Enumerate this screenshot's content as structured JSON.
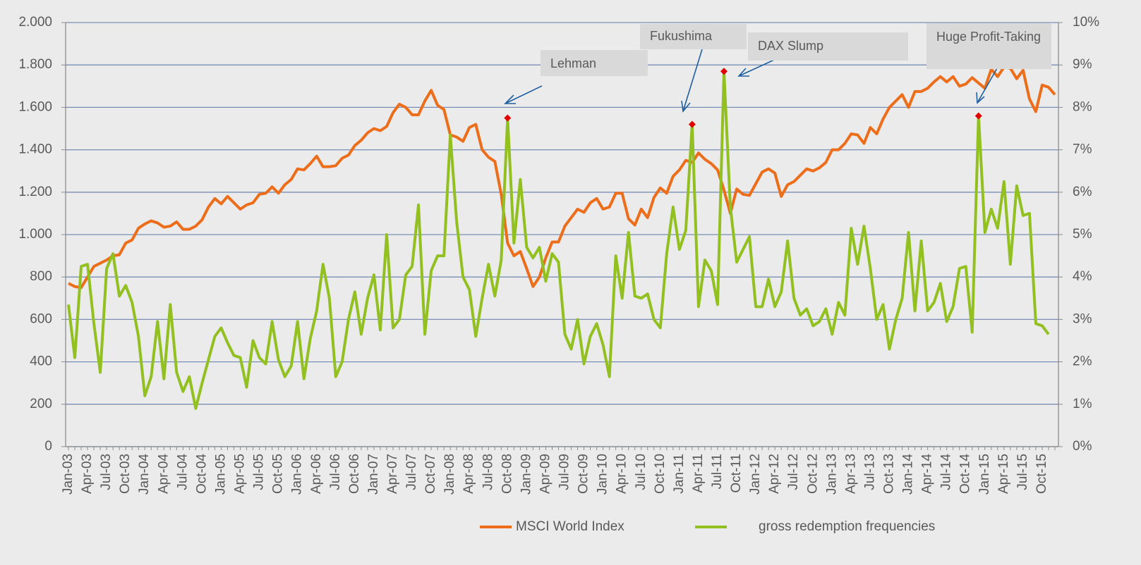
{
  "chart_data": {
    "type": "line",
    "categories": [
      "Jan-03",
      null,
      null,
      "Apr-03",
      null,
      null,
      "Jul-03",
      null,
      null,
      "Oct-03",
      null,
      null,
      "Jan-04",
      null,
      null,
      "Apr-04",
      null,
      null,
      "Jul-04",
      null,
      null,
      "Oct-04",
      null,
      null,
      "Jan-05",
      null,
      null,
      "Apr-05",
      null,
      null,
      "Jul-05",
      null,
      null,
      "Oct-05",
      null,
      null,
      "Jan-06",
      null,
      null,
      "Apr-06",
      null,
      null,
      "Jul-06",
      null,
      null,
      "Oct-06",
      null,
      null,
      "Jan-07",
      null,
      null,
      "Apr-07",
      null,
      null,
      "Jul-07",
      null,
      null,
      "Oct-07",
      null,
      null,
      "Jan-08",
      null,
      null,
      "Apr-08",
      null,
      null,
      "Jul-08",
      null,
      null,
      "Oct-08",
      null,
      null,
      "Jan-09",
      null,
      null,
      "Apr-09",
      null,
      null,
      "Jul-09",
      null,
      null,
      "Oct-09",
      null,
      null,
      "Jan-10",
      null,
      null,
      "Apr-10",
      null,
      null,
      "Jul-10",
      null,
      null,
      "Oct-10",
      null,
      null,
      "Jan-11",
      null,
      null,
      "Apr-11",
      null,
      null,
      "Jul-11",
      null,
      null,
      "Oct-11",
      null,
      null,
      "Jan-12",
      null,
      null,
      "Apr-12",
      null,
      null,
      "Jul-12",
      null,
      null,
      "Oct-12",
      null,
      null,
      "Jan-13",
      null,
      null,
      "Apr-13",
      null,
      null,
      "Jul-13",
      null,
      null,
      "Oct-13",
      null,
      null,
      "Jan-14",
      null,
      null,
      "Apr-14",
      null,
      null,
      "Jul-14",
      null,
      null,
      "Oct-14",
      null,
      null,
      "Jan-15",
      null,
      null,
      "Apr-15",
      null,
      null,
      "Jul-15",
      null,
      null,
      "Oct-15",
      null,
      null
    ],
    "series": [
      {
        "name": "MSCI World Index",
        "color": "#ec6d1a",
        "axis": "y",
        "values": [
          770,
          755,
          750,
          800,
          850,
          865,
          880,
          900,
          905,
          960,
          975,
          1030,
          1050,
          1065,
          1055,
          1035,
          1040,
          1060,
          1025,
          1025,
          1040,
          1070,
          1130,
          1170,
          1145,
          1180,
          1150,
          1120,
          1140,
          1150,
          1190,
          1195,
          1225,
          1195,
          1235,
          1260,
          1310,
          1305,
          1335,
          1370,
          1320,
          1320,
          1325,
          1360,
          1375,
          1420,
          1445,
          1480,
          1500,
          1490,
          1510,
          1575,
          1615,
          1600,
          1565,
          1565,
          1630,
          1680,
          1610,
          1590,
          1470,
          1460,
          1440,
          1505,
          1520,
          1400,
          1365,
          1345,
          1190,
          960,
          900,
          920,
          840,
          755,
          800,
          890,
          965,
          965,
          1040,
          1080,
          1120,
          1105,
          1150,
          1170,
          1120,
          1130,
          1195,
          1195,
          1075,
          1045,
          1120,
          1080,
          1175,
          1220,
          1195,
          1275,
          1305,
          1350,
          1340,
          1385,
          1355,
          1335,
          1305,
          1210,
          1100,
          1215,
          1190,
          1185,
          1240,
          1295,
          1310,
          1290,
          1180,
          1235,
          1250,
          1280,
          1310,
          1300,
          1315,
          1340,
          1400,
          1400,
          1430,
          1475,
          1470,
          1430,
          1505,
          1475,
          1545,
          1600,
          1630,
          1660,
          1600,
          1675,
          1675,
          1690,
          1720,
          1745,
          1720,
          1745,
          1700,
          1710,
          1740,
          1715,
          1690,
          1780,
          1745,
          1790,
          1785,
          1735,
          1775,
          1640,
          1580,
          1705,
          1695,
          1660
        ]
      },
      {
        "name": "gross redemption frequencies",
        "color": "#92c020",
        "axis": "y2",
        "values": [
          3.35,
          2.1,
          4.25,
          4.3,
          2.9,
          1.75,
          4.2,
          4.55,
          3.55,
          3.8,
          3.4,
          2.6,
          1.2,
          1.65,
          2.95,
          1.6,
          3.35,
          1.75,
          1.3,
          1.65,
          0.9,
          1.5,
          2.05,
          2.6,
          2.8,
          2.45,
          2.15,
          2.1,
          1.4,
          2.5,
          2.1,
          1.95,
          2.95,
          2.05,
          1.65,
          1.9,
          2.95,
          1.6,
          2.55,
          3.2,
          4.3,
          3.5,
          1.65,
          2.0,
          3.0,
          3.65,
          2.65,
          3.5,
          4.05,
          2.75,
          5.0,
          2.8,
          3.0,
          4.05,
          4.25,
          5.7,
          2.65,
          4.15,
          4.5,
          4.5,
          7.35,
          5.3,
          4.0,
          3.7,
          2.6,
          3.5,
          4.3,
          3.55,
          4.4,
          7.75,
          4.8,
          6.3,
          4.7,
          4.45,
          4.7,
          3.9,
          4.55,
          4.35,
          2.65,
          2.3,
          3.0,
          1.95,
          2.6,
          2.9,
          2.4,
          1.65,
          4.5,
          3.5,
          5.05,
          3.55,
          3.5,
          3.6,
          3.0,
          2.8,
          4.55,
          5.65,
          4.65,
          5.1,
          7.6,
          3.3,
          4.4,
          4.15,
          3.35,
          8.85,
          5.65,
          4.35,
          4.65,
          4.95,
          3.3,
          3.3,
          3.95,
          3.3,
          3.65,
          4.85,
          3.5,
          3.1,
          3.25,
          2.85,
          2.95,
          3.25,
          2.65,
          3.4,
          3.1,
          5.15,
          4.3,
          5.2,
          4.2,
          3.0,
          3.35,
          2.3,
          3.0,
          3.5,
          5.05,
          3.2,
          4.85,
          3.2,
          3.4,
          3.85,
          2.95,
          3.3,
          4.2,
          4.25,
          2.7,
          7.8,
          5.05,
          5.6,
          5.15,
          6.25,
          4.3,
          6.15,
          5.45,
          5.5,
          2.9,
          2.85,
          2.65,
          null
        ]
      }
    ],
    "highlight": {
      "series": 1,
      "color": "#e00000",
      "indices": [
        69,
        98,
        103,
        143
      ]
    },
    "annotations": [
      "Lehman",
      "Fukushima",
      "DAX Slump",
      "Huge Profit-Taking"
    ],
    "ylim": [
      0,
      2000
    ],
    "yticks": [
      0,
      200,
      400,
      600,
      800,
      {
        "value": 1000,
        "label": "1.000"
      },
      {
        "value": 1200,
        "label": "1.200"
      },
      {
        "value": 1400,
        "label": "1.400"
      },
      {
        "value": 1600,
        "label": "1.600"
      },
      {
        "value": 1800,
        "label": "1.800"
      },
      {
        "value": 2000,
        "label": "2.000"
      }
    ],
    "y2lim": [
      0,
      10
    ],
    "y2ticks": [
      {
        "value": 0,
        "label": "0%"
      },
      {
        "value": 1,
        "label": "1%"
      },
      {
        "value": 2,
        "label": "2%"
      },
      {
        "value": 3,
        "label": "3%"
      },
      {
        "value": 4,
        "label": "4%"
      },
      {
        "value": 5,
        "label": "5%"
      },
      {
        "value": 6,
        "label": "6%"
      },
      {
        "value": 7,
        "label": "7%"
      },
      {
        "value": 8,
        "label": "8%"
      },
      {
        "value": 9,
        "label": "9%"
      },
      {
        "value": 10,
        "label": "10%"
      }
    ],
    "grid": true,
    "legend": "bottom"
  }
}
